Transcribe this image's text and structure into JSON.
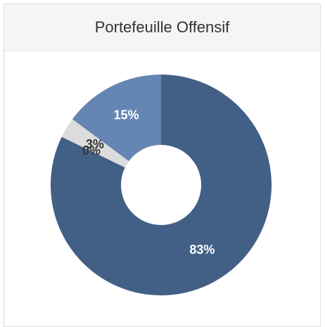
{
  "chart_data": {
    "type": "pie",
    "title": "Portefeuille Offensif",
    "donut": true,
    "values": [
      83,
      0,
      3,
      15
    ],
    "value_labels": [
      "83%",
      "0%",
      "3%",
      "15%"
    ],
    "colors": [
      "#425f86",
      "#c8c8c8",
      "#dcdcdc",
      "#6585b4"
    ]
  }
}
